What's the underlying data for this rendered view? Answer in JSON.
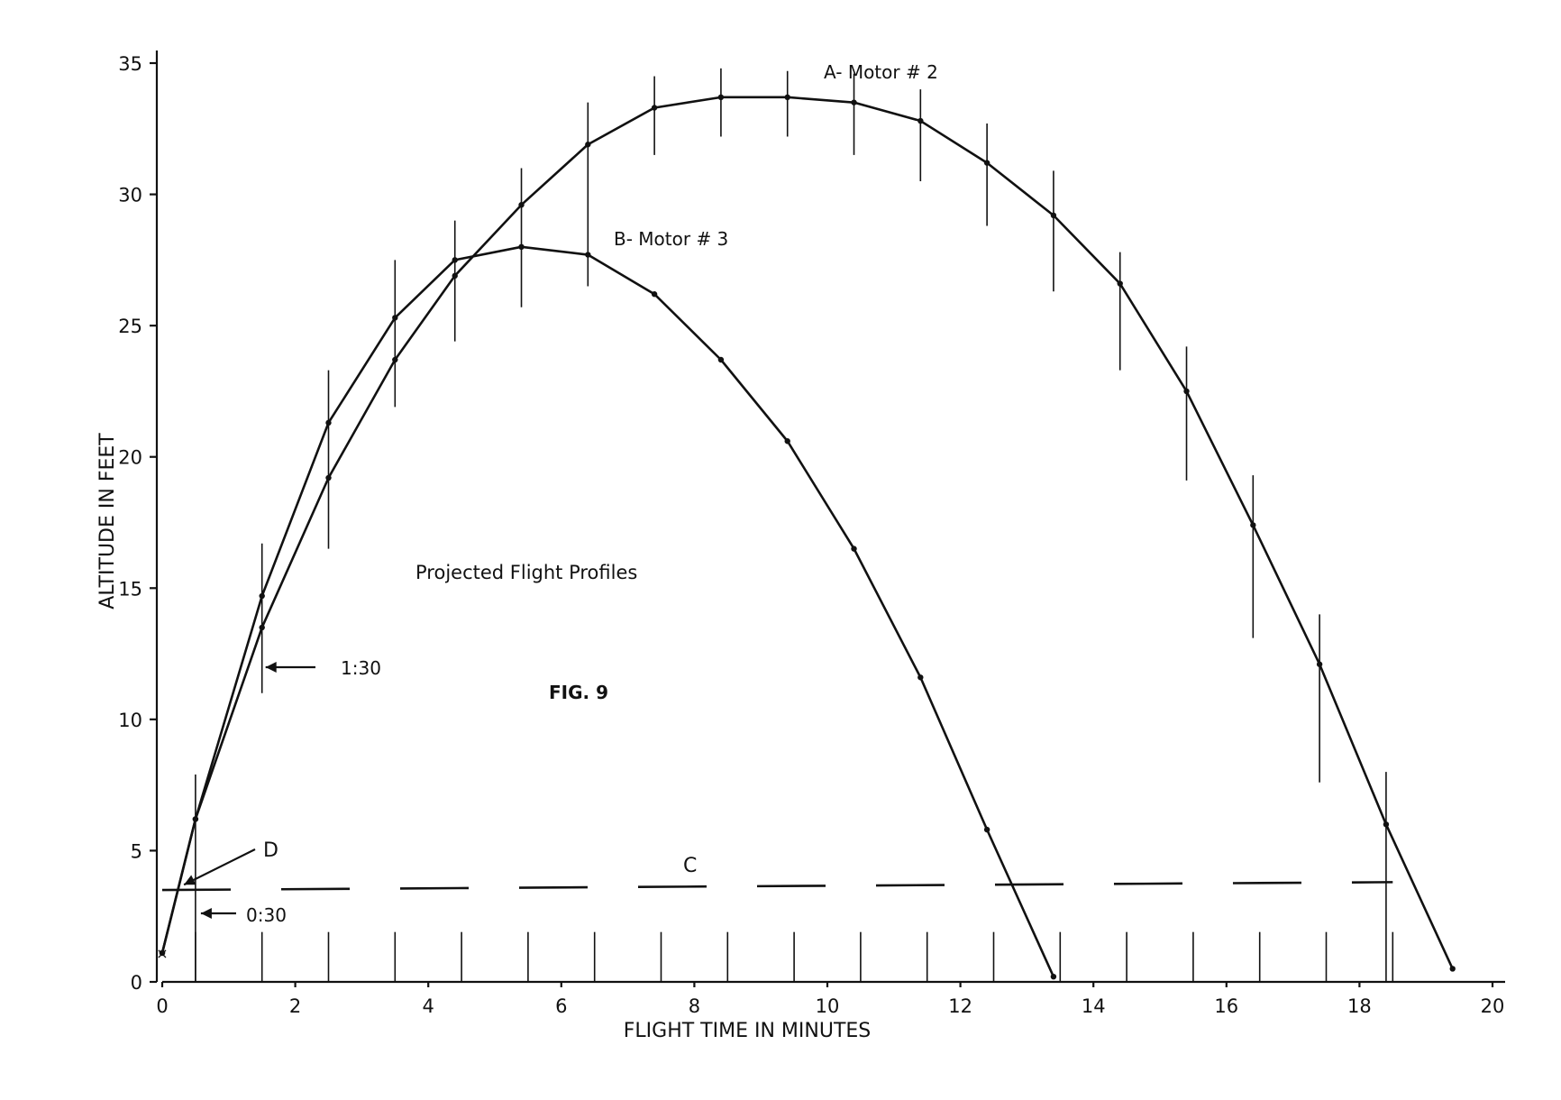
{
  "chart_data": {
    "type": "line",
    "title": "Projected Flight Profiles",
    "figure_label": "FIG. 9",
    "xlabel": "FLIGHT TIME IN MINUTES",
    "ylabel": "ALTITUDE IN FEET",
    "xlim": [
      0,
      20
    ],
    "ylim": [
      0,
      35
    ],
    "x_ticks": [
      0,
      2,
      4,
      6,
      8,
      10,
      12,
      14,
      16,
      18,
      20
    ],
    "y_ticks": [
      0,
      5,
      10,
      15,
      20,
      25,
      30,
      35
    ],
    "grid": false,
    "legend": "none (curves labelled directly)",
    "series": [
      {
        "name": "A- Motor # 2",
        "x": [
          0,
          0.5,
          1.5,
          2.5,
          3.5,
          4.4,
          5.4,
          6.4,
          7.4,
          8.4,
          9.4,
          10.4,
          11.4,
          12.4,
          13.4,
          14.4,
          15.4,
          16.4,
          17.4,
          18.4,
          19.4
        ],
        "y": [
          1.1,
          6.2,
          13.5,
          19.2,
          23.7,
          26.9,
          29.6,
          31.9,
          33.3,
          33.7,
          33.7,
          33.5,
          32.8,
          31.2,
          29.2,
          26.6,
          22.5,
          17.4,
          12.1,
          6.0,
          0.5
        ]
      },
      {
        "name": "B- Motor # 3",
        "x": [
          0,
          0.5,
          1.5,
          2.5,
          3.5,
          4.4,
          5.4,
          6.4,
          7.4,
          8.4,
          9.4,
          10.4,
          11.4,
          12.4,
          13.4
        ],
        "y": [
          1.1,
          6.2,
          14.7,
          21.3,
          25.3,
          27.5,
          28.0,
          27.7,
          26.2,
          23.7,
          20.6,
          16.5,
          11.6,
          5.8,
          0.2
        ]
      }
    ],
    "reference_line": {
      "label": "C",
      "style": "dashed",
      "x": [
        0,
        18.5
      ],
      "y": [
        3.5,
        3.8
      ]
    },
    "annotations": [
      {
        "text": "D",
        "x": 0.3,
        "y": 3.7
      },
      {
        "text": "1:30",
        "x": 1.5,
        "y": 12.0
      },
      {
        "text": "0:30",
        "x": 0.5,
        "y": 2.6
      }
    ],
    "error_bars": {
      "x": [
        0.5,
        1.5,
        2.5,
        3.5,
        4.4,
        5.4,
        6.4,
        7.4,
        8.4,
        9.4,
        10.4,
        11.4,
        12.4,
        13.4,
        14.4,
        15.4,
        16.4,
        17.4,
        18.4
      ],
      "y_low": [
        0,
        11.0,
        16.5,
        21.9,
        24.4,
        25.7,
        26.5,
        31.5,
        32.2,
        32.2,
        31.5,
        30.5,
        28.8,
        26.3,
        23.3,
        19.1,
        13.1,
        7.6,
        0
      ],
      "y_high": [
        7.9,
        16.7,
        23.3,
        27.5,
        29.0,
        31.0,
        33.5,
        34.5,
        34.8,
        34.7,
        34.6,
        34.0,
        32.7,
        30.9,
        27.8,
        24.2,
        19.3,
        14.0,
        8.0
      ],
      "lower_ticks": [
        0.5,
        1.5,
        2.5,
        3.5,
        4.5,
        5.5,
        6.5,
        7.5,
        8.5,
        9.5,
        10.5,
        11.5,
        12.5,
        13.5,
        14.5,
        15.5,
        16.5,
        17.5,
        18.5
      ]
    }
  }
}
